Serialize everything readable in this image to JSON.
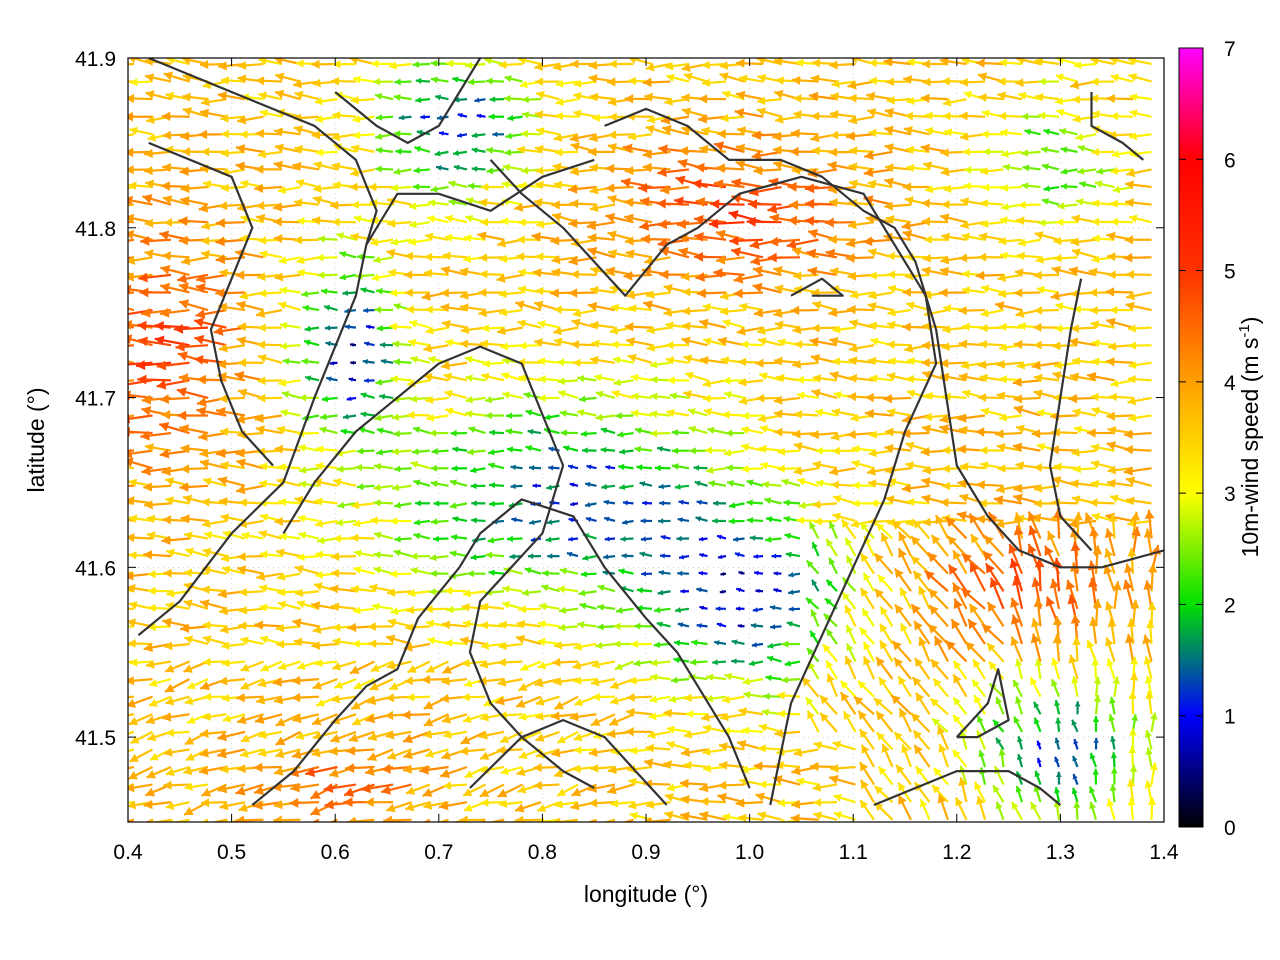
{
  "chart_data": {
    "type": "vector-field",
    "title": "",
    "xlabel": "longitude (°)",
    "ylabel": "latitude (°)",
    "xlim": [
      0.4,
      1.4
    ],
    "ylim": [
      41.45,
      41.9
    ],
    "xticks": [
      "0.4",
      "0.5",
      "0.6",
      "0.7",
      "0.8",
      "0.9",
      "1.0",
      "1.1",
      "1.2",
      "1.3",
      "1.4"
    ],
    "xtick_values": [
      0.4,
      0.5,
      0.6,
      0.7,
      0.8,
      0.9,
      1.0,
      1.1,
      1.2,
      1.3,
      1.4
    ],
    "yticks": [
      "41.5",
      "41.6",
      "41.7",
      "41.8",
      "41.9"
    ],
    "ytick_values": [
      41.5,
      41.6,
      41.7,
      41.8,
      41.9
    ],
    "colorbar": {
      "label_main": "10m-wind speed (m s",
      "label_sup": "-1",
      "label_end": ")",
      "range": [
        0,
        7
      ],
      "ticks": [
        "0",
        "1",
        "2",
        "3",
        "4",
        "5",
        "6",
        "7"
      ],
      "tick_values": [
        0,
        1,
        2,
        3,
        4,
        5,
        6,
        7
      ],
      "stops": [
        "#000000",
        "#0000ff",
        "#00e000",
        "#ffff00",
        "#ffa000",
        "#ff0000",
        "#ff00ff"
      ]
    },
    "grid": true,
    "field_note": "",
    "contours": [
      [
        [
          0.42,
          41.9
        ],
        [
          0.5,
          41.88
        ],
        [
          0.58,
          41.86
        ],
        [
          0.62,
          41.84
        ],
        [
          0.64,
          41.81
        ],
        [
          0.63,
          41.79
        ]
      ],
      [
        [
          0.42,
          41.85
        ],
        [
          0.5,
          41.83
        ],
        [
          0.52,
          41.8
        ],
        [
          0.5,
          41.77
        ],
        [
          0.48,
          41.74
        ],
        [
          0.49,
          41.71
        ],
        [
          0.51,
          41.68
        ],
        [
          0.54,
          41.66
        ]
      ],
      [
        [
          0.41,
          41.56
        ],
        [
          0.45,
          41.58
        ],
        [
          0.5,
          41.62
        ],
        [
          0.55,
          41.65
        ],
        [
          0.58,
          41.7
        ],
        [
          0.6,
          41.73
        ],
        [
          0.62,
          41.76
        ],
        [
          0.63,
          41.79
        ],
        [
          0.66,
          41.82
        ],
        [
          0.7,
          41.82
        ],
        [
          0.75,
          41.81
        ],
        [
          0.8,
          41.83
        ],
        [
          0.85,
          41.84
        ]
      ],
      [
        [
          0.6,
          41.88
        ],
        [
          0.64,
          41.86
        ],
        [
          0.67,
          41.85
        ],
        [
          0.7,
          41.86
        ],
        [
          0.72,
          41.88
        ],
        [
          0.74,
          41.9
        ]
      ],
      [
        [
          0.75,
          41.84
        ],
        [
          0.78,
          41.82
        ],
        [
          0.82,
          41.8
        ],
        [
          0.85,
          41.78
        ],
        [
          0.88,
          41.76
        ],
        [
          0.92,
          41.79
        ],
        [
          0.95,
          41.8
        ],
        [
          0.99,
          41.82
        ],
        [
          1.05,
          41.83
        ],
        [
          1.11,
          41.82
        ],
        [
          1.14,
          41.79
        ],
        [
          1.17,
          41.76
        ],
        [
          1.18,
          41.72
        ],
        [
          1.15,
          41.68
        ],
        [
          1.13,
          41.64
        ],
        [
          1.1,
          41.6
        ],
        [
          1.07,
          41.56
        ],
        [
          1.04,
          41.52
        ],
        [
          1.02,
          41.46
        ]
      ],
      [
        [
          0.55,
          41.62
        ],
        [
          0.58,
          41.65
        ],
        [
          0.62,
          41.68
        ],
        [
          0.66,
          41.7
        ],
        [
          0.7,
          41.72
        ],
        [
          0.74,
          41.73
        ],
        [
          0.78,
          41.72
        ],
        [
          0.8,
          41.69
        ],
        [
          0.82,
          41.66
        ],
        [
          0.8,
          41.62
        ],
        [
          0.77,
          41.6
        ],
        [
          0.74,
          41.58
        ],
        [
          0.73,
          41.55
        ],
        [
          0.75,
          41.52
        ],
        [
          0.78,
          41.5
        ],
        [
          0.82,
          41.48
        ],
        [
          0.85,
          41.47
        ]
      ],
      [
        [
          0.52,
          41.46
        ],
        [
          0.56,
          41.48
        ],
        [
          0.6,
          41.51
        ],
        [
          0.63,
          41.53
        ],
        [
          0.66,
          41.54
        ],
        [
          0.68,
          41.57
        ],
        [
          0.72,
          41.6
        ],
        [
          0.74,
          41.62
        ],
        [
          0.78,
          41.64
        ],
        [
          0.83,
          41.63
        ],
        [
          0.86,
          41.6
        ],
        [
          0.9,
          41.57
        ],
        [
          0.93,
          41.55
        ],
        [
          0.96,
          41.52
        ],
        [
          0.98,
          41.5
        ],
        [
          1.0,
          41.47
        ]
      ],
      [
        [
          0.86,
          41.86
        ],
        [
          0.9,
          41.87
        ],
        [
          0.94,
          41.86
        ],
        [
          0.98,
          41.84
        ],
        [
          1.03,
          41.84
        ],
        [
          1.07,
          41.83
        ],
        [
          1.11,
          41.81
        ],
        [
          1.14,
          41.8
        ],
        [
          1.16,
          41.78
        ],
        [
          1.18,
          41.74
        ],
        [
          1.19,
          41.7
        ],
        [
          1.2,
          41.66
        ],
        [
          1.23,
          41.63
        ],
        [
          1.26,
          41.61
        ],
        [
          1.3,
          41.6
        ],
        [
          1.34,
          41.6
        ],
        [
          1.4,
          41.61
        ]
      ],
      [
        [
          1.32,
          41.77
        ],
        [
          1.31,
          41.74
        ],
        [
          1.3,
          41.7
        ],
        [
          1.29,
          41.66
        ],
        [
          1.3,
          41.63
        ],
        [
          1.33,
          41.61
        ]
      ],
      [
        [
          1.12,
          41.46
        ],
        [
          1.16,
          41.47
        ],
        [
          1.2,
          41.48
        ],
        [
          1.25,
          41.48
        ],
        [
          1.28,
          41.47
        ],
        [
          1.3,
          41.46
        ]
      ],
      [
        [
          1.33,
          41.88
        ],
        [
          1.33,
          41.86
        ],
        [
          1.36,
          41.85
        ],
        [
          1.38,
          41.84
        ]
      ],
      [
        [
          1.04,
          41.76
        ],
        [
          1.07,
          41.77
        ],
        [
          1.09,
          41.76
        ],
        [
          1.06,
          41.76
        ]
      ],
      [
        [
          0.73,
          41.47
        ],
        [
          0.78,
          41.5
        ],
        [
          0.82,
          41.51
        ],
        [
          0.86,
          41.5
        ],
        [
          0.89,
          41.48
        ],
        [
          0.92,
          41.46
        ]
      ],
      [
        [
          1.2,
          41.5
        ],
        [
          1.23,
          41.52
        ],
        [
          1.24,
          41.54
        ],
        [
          1.25,
          41.51
        ],
        [
          1.22,
          41.5
        ],
        [
          1.2,
          41.5
        ]
      ]
    ]
  }
}
